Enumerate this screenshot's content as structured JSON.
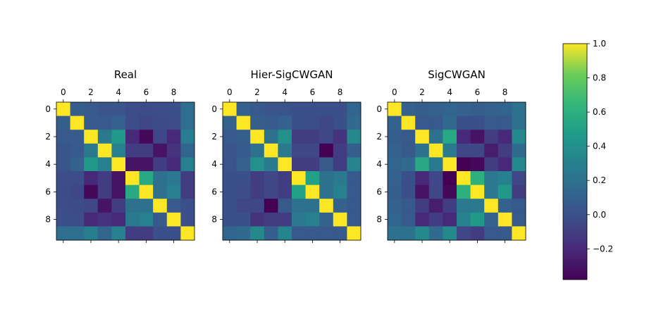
{
  "chart_data": {
    "type": "heatmap",
    "colormap": "viridis",
    "colorbar": {
      "vmin": -0.38,
      "vmax": 1.0,
      "ticks": [
        1.0,
        0.8,
        0.6,
        0.4,
        0.2,
        0.0,
        -0.2
      ],
      "tick_labels": [
        "1.0",
        "0.8",
        "0.6",
        "0.4",
        "0.2",
        "0.0",
        "−0.2"
      ]
    },
    "axis_ticks": [
      0,
      2,
      4,
      6,
      8
    ],
    "panels": [
      {
        "title": "Real",
        "matrix": [
          [
            1.0,
            0.08,
            0.05,
            0.03,
            0.03,
            -0.02,
            -0.03,
            -0.02,
            0.0,
            0.18
          ],
          [
            0.08,
            1.0,
            0.06,
            0.05,
            0.1,
            -0.02,
            -0.05,
            -0.03,
            -0.02,
            0.18
          ],
          [
            0.05,
            0.06,
            1.0,
            0.25,
            0.45,
            -0.2,
            -0.35,
            -0.05,
            -0.2,
            0.28
          ],
          [
            0.03,
            0.05,
            0.25,
            1.0,
            0.3,
            -0.1,
            -0.1,
            -0.3,
            -0.15,
            0.12
          ],
          [
            0.03,
            0.1,
            0.45,
            0.3,
            1.0,
            -0.3,
            -0.3,
            -0.1,
            -0.2,
            0.3
          ],
          [
            -0.02,
            -0.02,
            -0.2,
            -0.1,
            -0.3,
            1.0,
            0.55,
            0.2,
            0.25,
            -0.1
          ],
          [
            -0.03,
            -0.05,
            -0.35,
            -0.1,
            -0.3,
            0.55,
            1.0,
            0.2,
            0.3,
            -0.1
          ],
          [
            -0.02,
            -0.03,
            -0.05,
            -0.3,
            -0.1,
            0.2,
            0.2,
            1.0,
            0.05,
            0.0
          ],
          [
            0.0,
            -0.02,
            -0.2,
            -0.15,
            -0.2,
            0.25,
            0.3,
            0.05,
            1.0,
            0.0
          ],
          [
            0.18,
            0.18,
            0.28,
            0.12,
            0.3,
            -0.1,
            -0.1,
            0.0,
            0.0,
            1.0
          ]
        ]
      },
      {
        "title": "Hier-SigCWGAN",
        "matrix": [
          [
            1.0,
            0.1,
            0.05,
            0.03,
            0.02,
            0.0,
            0.0,
            0.0,
            0.0,
            0.12
          ],
          [
            0.1,
            1.0,
            0.08,
            0.06,
            0.1,
            0.0,
            -0.02,
            -0.05,
            0.0,
            0.15
          ],
          [
            0.05,
            0.08,
            1.0,
            0.2,
            0.4,
            -0.1,
            -0.1,
            -0.05,
            -0.15,
            0.35
          ],
          [
            0.03,
            0.06,
            0.2,
            1.0,
            0.25,
            -0.05,
            -0.05,
            -0.38,
            -0.1,
            0.08
          ],
          [
            0.02,
            0.1,
            0.4,
            0.25,
            1.0,
            -0.1,
            -0.1,
            0.05,
            -0.1,
            0.32
          ],
          [
            0.0,
            0.0,
            -0.1,
            -0.05,
            -0.1,
            1.0,
            0.5,
            0.2,
            0.25,
            0.05
          ],
          [
            0.0,
            -0.02,
            -0.1,
            -0.05,
            -0.1,
            0.5,
            1.0,
            0.2,
            0.3,
            0.05
          ],
          [
            0.0,
            -0.05,
            -0.05,
            -0.38,
            0.05,
            0.2,
            0.2,
            1.0,
            0.1,
            0.05
          ],
          [
            0.0,
            0.0,
            -0.15,
            -0.1,
            -0.1,
            0.25,
            0.3,
            0.1,
            1.0,
            0.05
          ],
          [
            0.12,
            0.15,
            0.35,
            0.08,
            0.32,
            0.05,
            0.05,
            0.05,
            0.05,
            1.0
          ]
        ]
      },
      {
        "title": "SigCWGAN",
        "matrix": [
          [
            1.0,
            0.1,
            0.08,
            0.1,
            0.12,
            0.1,
            0.08,
            0.1,
            0.12,
            0.2
          ],
          [
            0.1,
            1.0,
            0.05,
            0.05,
            0.15,
            0.0,
            0.0,
            0.05,
            0.05,
            0.2
          ],
          [
            0.08,
            0.05,
            1.0,
            0.2,
            0.55,
            -0.2,
            -0.3,
            -0.1,
            -0.2,
            0.35
          ],
          [
            0.1,
            0.05,
            0.2,
            1.0,
            0.25,
            -0.05,
            -0.05,
            -0.25,
            -0.1,
            0.15
          ],
          [
            0.12,
            0.15,
            0.55,
            0.25,
            1.0,
            -0.38,
            -0.35,
            -0.1,
            -0.2,
            0.35
          ],
          [
            0.1,
            0.0,
            -0.2,
            -0.05,
            -0.38,
            1.0,
            0.6,
            0.25,
            0.3,
            -0.05
          ],
          [
            0.08,
            0.0,
            -0.3,
            -0.05,
            -0.35,
            0.6,
            1.0,
            0.25,
            0.45,
            -0.1
          ],
          [
            0.1,
            0.05,
            -0.1,
            -0.25,
            -0.1,
            0.25,
            0.25,
            1.0,
            0.1,
            0.05
          ],
          [
            0.12,
            0.05,
            -0.2,
            -0.1,
            -0.2,
            0.3,
            0.45,
            0.1,
            1.0,
            0.05
          ],
          [
            0.2,
            0.2,
            0.35,
            0.15,
            0.35,
            -0.05,
            -0.1,
            0.05,
            0.05,
            1.0
          ]
        ]
      }
    ]
  }
}
